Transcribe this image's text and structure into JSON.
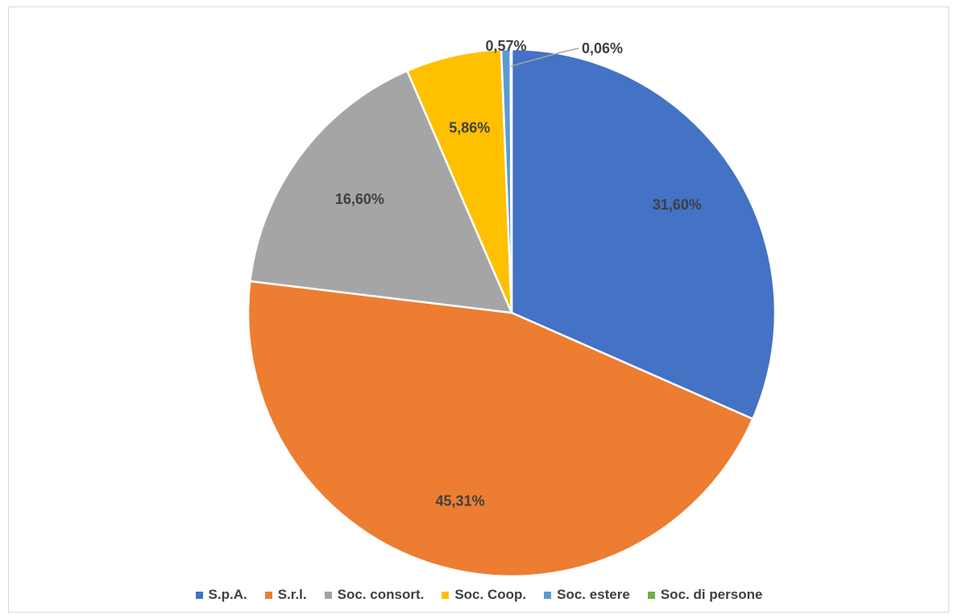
{
  "chart_data": {
    "type": "pie",
    "title": "",
    "start_angle_deg": 0,
    "direction": "clockwise",
    "legend_position": "bottom",
    "slices": [
      {
        "name": "S.p.A.",
        "value": 31.6,
        "label": "31,60%",
        "color": "#4472C4"
      },
      {
        "name": "S.r.l.",
        "value": 45.31,
        "label": "45,31%",
        "color": "#ED7D31"
      },
      {
        "name": "Soc. consort.",
        "value": 16.6,
        "label": "16,60%",
        "color": "#A5A5A5"
      },
      {
        "name": "Soc. Coop.",
        "value": 5.86,
        "label": "5,86%",
        "color": "#FFC000"
      },
      {
        "name": "Soc. estere",
        "value": 0.57,
        "label": "0,57%",
        "color": "#5B9BD5"
      },
      {
        "name": "Soc. di persone",
        "value": 0.06,
        "label": "0,06%",
        "color": "#70AD47"
      }
    ]
  }
}
